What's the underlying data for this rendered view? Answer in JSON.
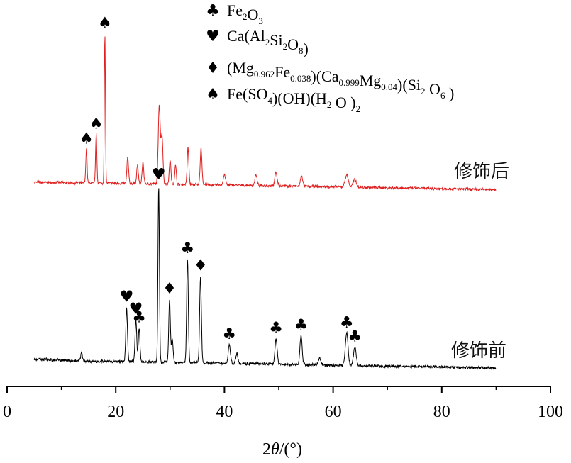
{
  "chart_data": {
    "type": "line",
    "xlabel": "2θ/(°)",
    "xlabel_parts": [
      "2",
      "θ",
      "/(°)"
    ],
    "xlim": [
      0,
      100
    ],
    "xticks": [
      "0",
      "20",
      "40",
      "60",
      "80",
      "100"
    ],
    "grid": false,
    "legend_placement": "top-center",
    "legend": [
      {
        "symbol": "♣",
        "parts": [
          [
            "Fe",
            ""
          ],
          [
            "2",
            "sub"
          ],
          [
            "O",
            ""
          ],
          [
            "3",
            "sub"
          ]
        ],
        "text": "Fe2O3"
      },
      {
        "symbol": "♥",
        "parts": [
          [
            "Ca(Al",
            ""
          ],
          [
            "2",
            "sub"
          ],
          [
            "Si",
            ""
          ],
          [
            "2",
            "sub"
          ],
          [
            "O",
            ""
          ],
          [
            "8",
            "sub"
          ],
          [
            ")",
            ""
          ]
        ],
        "text": "Ca(Al2Si2O8)"
      },
      {
        "symbol": "♦",
        "parts": [
          [
            "(Mg",
            ""
          ],
          [
            "0.962",
            "sub"
          ],
          [
            "Fe",
            ""
          ],
          [
            "0.038",
            "sub"
          ],
          [
            ")(Ca",
            ""
          ],
          [
            "0.999",
            "sub"
          ],
          [
            "Mg",
            ""
          ],
          [
            "0.04",
            "sub"
          ],
          [
            ")(Si",
            ""
          ],
          [
            "2",
            "sub"
          ],
          [
            " O",
            ""
          ],
          [
            "6",
            "sub"
          ],
          [
            " )",
            ""
          ]
        ],
        "text": "(Mg0.962Fe0.038)(Ca0.999Mg0.04)(Si2O6)"
      },
      {
        "symbol": "♠",
        "parts": [
          [
            "Fe(SO",
            ""
          ],
          [
            "4",
            "sub"
          ],
          [
            ")(OH)(H",
            ""
          ],
          [
            "2",
            "sub"
          ],
          [
            " O )",
            ""
          ],
          [
            "2",
            "sub"
          ]
        ],
        "text": "Fe(SO4)(OH)(H2O)2"
      }
    ],
    "series": [
      {
        "name": "修饰后",
        "color": "#e02020",
        "x_range": [
          5,
          90
        ],
        "baseline": [
          [
            5,
            0.3
          ],
          [
            20,
            0.27
          ],
          [
            30,
            0.24
          ],
          [
            50,
            0.18
          ],
          [
            70,
            0.12
          ],
          [
            90,
            0.06
          ]
        ],
        "noise": 0.035,
        "peaks": [
          {
            "x": 14.6,
            "y": 1.1,
            "w": 0.12,
            "marker": "♠"
          },
          {
            "x": 16.4,
            "y": 1.6,
            "w": 0.12,
            "marker": "♠"
          },
          {
            "x": 18.0,
            "y": 4.9,
            "w": 0.1,
            "marker": "♠"
          },
          {
            "x": 22.2,
            "y": 0.85,
            "w": 0.15
          },
          {
            "x": 24.0,
            "y": 0.6,
            "w": 0.15
          },
          {
            "x": 25.0,
            "y": 0.7,
            "w": 0.15
          },
          {
            "x": 28.0,
            "y": 2.6,
            "w": 0.18
          },
          {
            "x": 28.5,
            "y": 1.6,
            "w": 0.18
          },
          {
            "x": 30.0,
            "y": 0.8,
            "w": 0.15
          },
          {
            "x": 31.0,
            "y": 0.6,
            "w": 0.15
          },
          {
            "x": 33.3,
            "y": 1.2,
            "w": 0.15
          },
          {
            "x": 35.7,
            "y": 1.2,
            "w": 0.16
          },
          {
            "x": 40.0,
            "y": 0.35,
            "w": 0.2
          },
          {
            "x": 45.8,
            "y": 0.35,
            "w": 0.2
          },
          {
            "x": 49.5,
            "y": 0.45,
            "w": 0.2
          },
          {
            "x": 54.2,
            "y": 0.35,
            "w": 0.2
          },
          {
            "x": 62.5,
            "y": 0.4,
            "w": 0.3
          },
          {
            "x": 64.0,
            "y": 0.25,
            "w": 0.3
          }
        ]
      },
      {
        "name": "修饰前",
        "color": "#000000",
        "x_range": [
          5,
          90
        ],
        "baseline": [
          [
            5,
            0.28
          ],
          [
            15,
            0.22
          ],
          [
            25,
            0.2
          ],
          [
            40,
            0.16
          ],
          [
            60,
            0.1
          ],
          [
            90,
            0.02
          ]
        ],
        "noise": 0.035,
        "peaks": [
          {
            "x": 13.7,
            "y": 0.25,
            "w": 0.15
          },
          {
            "x": 22.0,
            "y": 1.6,
            "w": 0.15,
            "marker": "♥"
          },
          {
            "x": 23.7,
            "y": 1.25,
            "w": 0.15,
            "marker": "♥"
          },
          {
            "x": 24.3,
            "y": 1.0,
            "w": 0.15,
            "marker": "♣"
          },
          {
            "x": 27.9,
            "y": 5.2,
            "w": 0.13,
            "marker": "♥"
          },
          {
            "x": 29.9,
            "y": 1.85,
            "w": 0.15,
            "marker": "♦"
          },
          {
            "x": 30.4,
            "y": 0.7,
            "w": 0.15
          },
          {
            "x": 33.2,
            "y": 3.05,
            "w": 0.15,
            "marker": "♣"
          },
          {
            "x": 35.6,
            "y": 2.55,
            "w": 0.16,
            "marker": "♦"
          },
          {
            "x": 40.9,
            "y": 0.55,
            "w": 0.2,
            "marker": "♣"
          },
          {
            "x": 42.3,
            "y": 0.3,
            "w": 0.2
          },
          {
            "x": 49.5,
            "y": 0.75,
            "w": 0.2,
            "marker": "♣"
          },
          {
            "x": 54.1,
            "y": 0.85,
            "w": 0.2,
            "marker": "♣"
          },
          {
            "x": 57.5,
            "y": 0.2,
            "w": 0.25
          },
          {
            "x": 62.5,
            "y": 0.95,
            "w": 0.25,
            "marker": "♣"
          },
          {
            "x": 64.0,
            "y": 0.55,
            "w": 0.25,
            "marker": "♣"
          }
        ]
      }
    ]
  }
}
